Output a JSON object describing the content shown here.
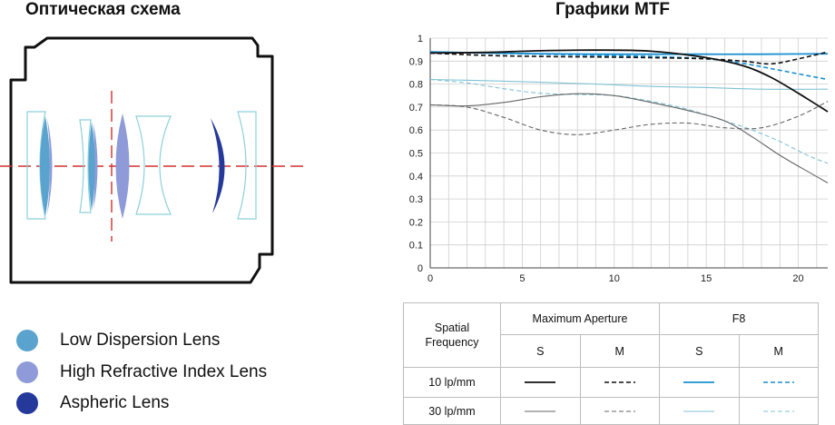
{
  "optical": {
    "title": "Оптическая схема",
    "legend": [
      {
        "label": "Low Dispersion Lens",
        "color": "#5aa3cf"
      },
      {
        "label": "High Refractive Index Lens",
        "color": "#8e9bd8"
      },
      {
        "label": "Aspheric Lens",
        "color": "#25399a"
      }
    ]
  },
  "mtf_title": "Графики MTF",
  "chart_data": {
    "type": "line",
    "title": "Графики MTF",
    "xlim": [
      0,
      21.6
    ],
    "ylim": [
      0,
      1
    ],
    "x_ticks": [
      "0",
      "5",
      "10",
      "15",
      "20"
    ],
    "y_ticks": [
      "0",
      "0.1",
      "0.2",
      "0.3",
      "0.4",
      "0.5",
      "0.6",
      "0.7",
      "0.8",
      "0.9",
      "1"
    ],
    "grid": true,
    "series": [
      {
        "name": "Maximum Aperture S 10 lp/mm",
        "color": "#111111",
        "width": 1.8,
        "dash": "",
        "x": [
          0,
          3,
          6,
          9,
          12,
          15,
          17,
          18.5,
          20,
          21.6
        ],
        "y": [
          0.935,
          0.938,
          0.945,
          0.948,
          0.943,
          0.915,
          0.88,
          0.83,
          0.76,
          0.68
        ]
      },
      {
        "name": "Maximum Aperture M 10 lp/mm",
        "color": "#111111",
        "width": 1.6,
        "dash": "5,3",
        "x": [
          0,
          3,
          6,
          9,
          12,
          15,
          17,
          18.5,
          20,
          21.6
        ],
        "y": [
          0.935,
          0.925,
          0.92,
          0.918,
          0.915,
          0.91,
          0.9,
          0.888,
          0.91,
          0.94
        ]
      },
      {
        "name": "F8 S 10 lp/mm",
        "color": "#1a8fd1",
        "width": 1.8,
        "dash": "",
        "x": [
          0,
          3,
          6,
          9,
          12,
          15,
          18,
          21.6
        ],
        "y": [
          0.94,
          0.935,
          0.932,
          0.93,
          0.93,
          0.93,
          0.93,
          0.932
        ]
      },
      {
        "name": "F8 M 10 lp/mm",
        "color": "#1a8fd1",
        "width": 1.6,
        "dash": "5,3",
        "x": [
          0,
          3,
          6,
          9,
          12,
          15,
          17,
          19,
          21.6
        ],
        "y": [
          0.94,
          0.935,
          0.93,
          0.925,
          0.92,
          0.91,
          0.89,
          0.86,
          0.82
        ]
      },
      {
        "name": "Maximum Aperture S 30 lp/mm",
        "color": "#666666",
        "width": 1.1,
        "dash": "",
        "x": [
          0,
          2,
          4,
          6,
          8,
          10,
          12,
          14,
          16,
          17.5,
          19,
          20.5,
          21.6
        ],
        "y": [
          0.71,
          0.705,
          0.72,
          0.745,
          0.758,
          0.75,
          0.72,
          0.685,
          0.64,
          0.57,
          0.49,
          0.42,
          0.37
        ]
      },
      {
        "name": "Maximum Aperture M 30 lp/mm",
        "color": "#666666",
        "width": 1.1,
        "dash": "5,3",
        "x": [
          0,
          2,
          4,
          6,
          8,
          10,
          12,
          14,
          16,
          18,
          20,
          21.6
        ],
        "y": [
          0.71,
          0.7,
          0.655,
          0.6,
          0.58,
          0.6,
          0.625,
          0.63,
          0.61,
          0.61,
          0.66,
          0.725
        ]
      },
      {
        "name": "F8 S 30 lp/mm",
        "color": "#7fc3d6",
        "width": 1.1,
        "dash": "",
        "x": [
          0,
          3,
          6,
          9,
          12,
          15,
          18,
          21.6
        ],
        "y": [
          0.82,
          0.815,
          0.808,
          0.8,
          0.79,
          0.785,
          0.778,
          0.778
        ]
      },
      {
        "name": "F8 M 30 lp/mm",
        "color": "#7fc3d6",
        "width": 1.1,
        "dash": "5,3",
        "x": [
          0,
          2,
          4,
          6,
          8,
          10,
          12,
          14,
          16,
          17.5,
          19,
          20.5,
          21.6
        ],
        "y": [
          0.82,
          0.805,
          0.78,
          0.76,
          0.755,
          0.75,
          0.725,
          0.69,
          0.64,
          0.6,
          0.55,
          0.49,
          0.455
        ]
      }
    ]
  },
  "legend_table": {
    "spatial_frequency": "Spatial\nFrequency",
    "max_aperture": "Maximum Aperture",
    "f8": "F8",
    "s": "S",
    "m": "M",
    "row_10": "10 lp/mm",
    "row_30": "30 lp/mm"
  }
}
